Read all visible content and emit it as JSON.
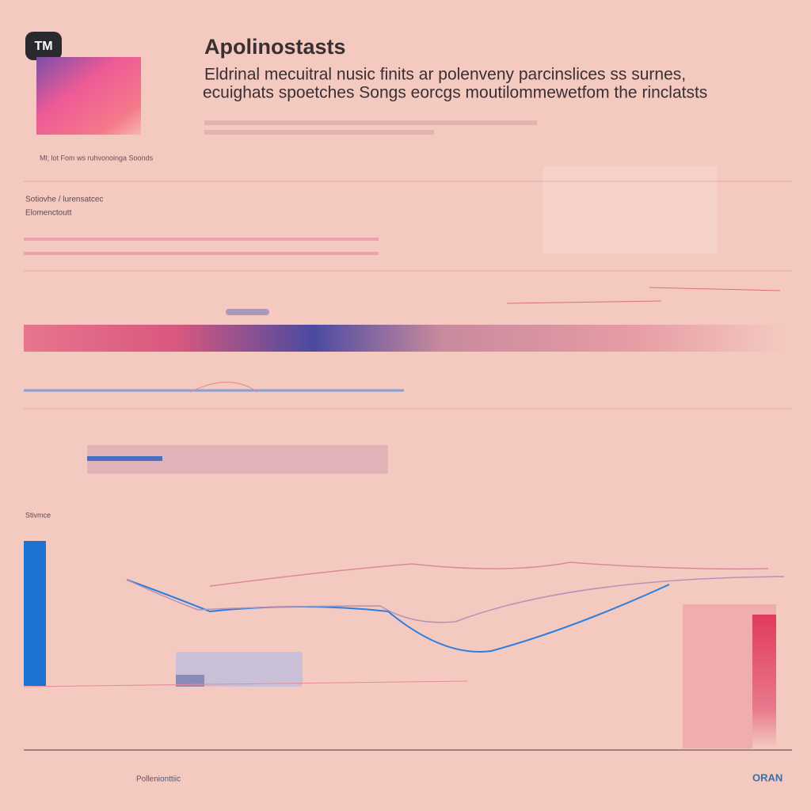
{
  "header": {
    "badge": "TM",
    "title": "Apolinostasts",
    "subtitle": [
      "Eldrinal mecuitral nusic finits ar polenveny parcinslices ss surnes,",
      "ecuighats spoetches Songs eorcgs moutilommewetfom the rinclatsts"
    ],
    "caption": "Ml; lot Fom ws ruhvonoinga Soonds"
  },
  "sections": [
    "Sotiovhe / lurensatcec",
    "Elomenctoutt",
    "Stivmce"
  ],
  "footer": {
    "brand": "ORAN",
    "link": "Pollenionttiic"
  }
}
